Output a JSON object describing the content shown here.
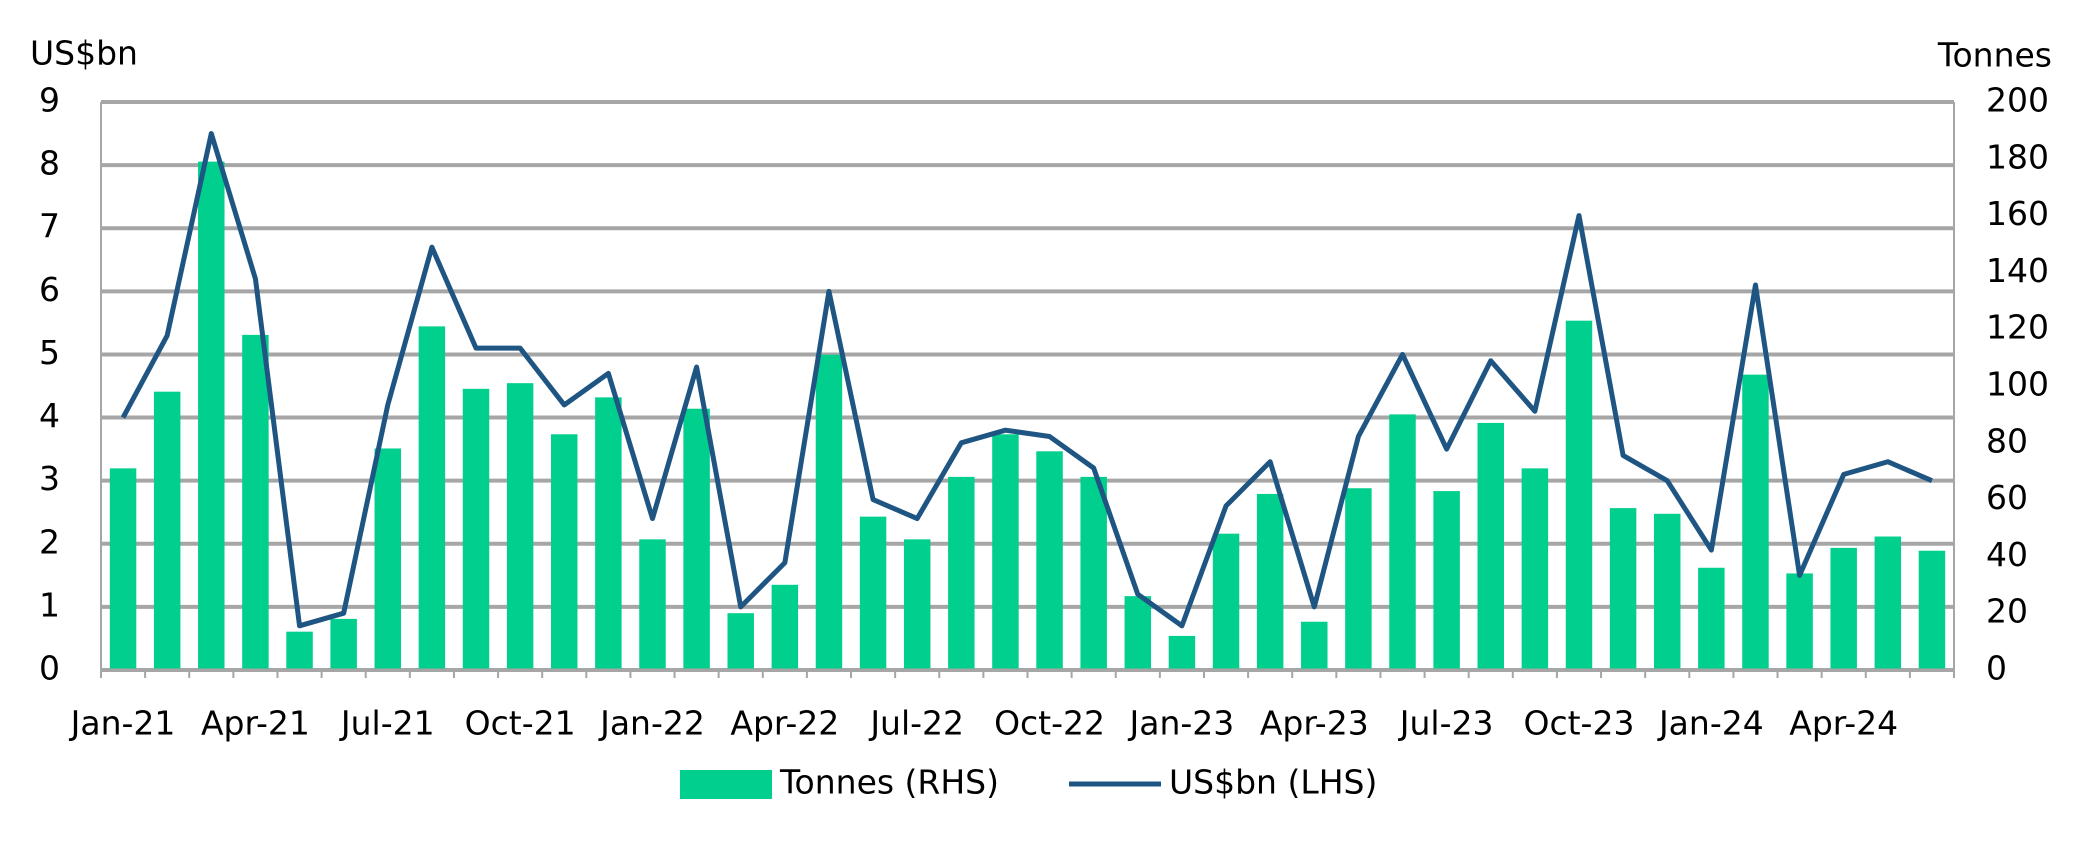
{
  "chart_data": {
    "type": "bar",
    "y_label": "US$bn",
    "y2_label": "Tonnes",
    "categories": [
      "Jan-21",
      null,
      null,
      "Apr-21",
      null,
      null,
      "Jul-21",
      null,
      null,
      "Oct-21",
      null,
      null,
      "Jan-22",
      null,
      null,
      "Apr-22",
      null,
      null,
      "Jul-22",
      null,
      null,
      "Oct-22",
      null,
      null,
      "Jan-23",
      null,
      null,
      "Apr-23",
      null,
      null,
      "Jul-23",
      null,
      null,
      "Oct-23",
      null,
      null,
      "Jan-24",
      null,
      null,
      "Apr-24",
      null,
      null
    ],
    "series": [
      {
        "name": "Tonnes (RHS)",
        "type": "bar",
        "axis": "y2",
        "color": "#00cf8d",
        "values": [
          71,
          98,
          179,
          118,
          13.5,
          18,
          78,
          121,
          99,
          101,
          83,
          96,
          46,
          92,
          20,
          30,
          111,
          54,
          46,
          68,
          83,
          77,
          68,
          26,
          12,
          48,
          62,
          17,
          64,
          90,
          63,
          87,
          71,
          123,
          57,
          55,
          36,
          104,
          34,
          43,
          47,
          42
        ]
      },
      {
        "name": "US$bn (LHS)",
        "type": "line",
        "axis": "y",
        "color": "#1f5582",
        "values": [
          4.0,
          5.3,
          8.5,
          6.2,
          0.7,
          0.9,
          4.2,
          6.7,
          5.1,
          5.1,
          4.2,
          4.7,
          2.4,
          4.8,
          1.0,
          1.7,
          6.0,
          2.7,
          2.4,
          3.6,
          3.8,
          3.7,
          3.2,
          1.2,
          0.7,
          2.6,
          3.3,
          1.0,
          3.7,
          5.0,
          3.5,
          4.9,
          4.1,
          7.2,
          3.4,
          3.0,
          1.9,
          6.1,
          1.5,
          3.1,
          3.3,
          3.0
        ]
      }
    ],
    "ylim": [
      0,
      9
    ],
    "yticks": [
      0,
      1,
      2,
      3,
      4,
      5,
      6,
      7,
      8,
      9
    ],
    "y2lim": [
      0,
      200
    ],
    "y2ticks": [
      0,
      20,
      40,
      60,
      80,
      100,
      120,
      140,
      160,
      180,
      200
    ],
    "grid": true,
    "legend": "bottom"
  }
}
